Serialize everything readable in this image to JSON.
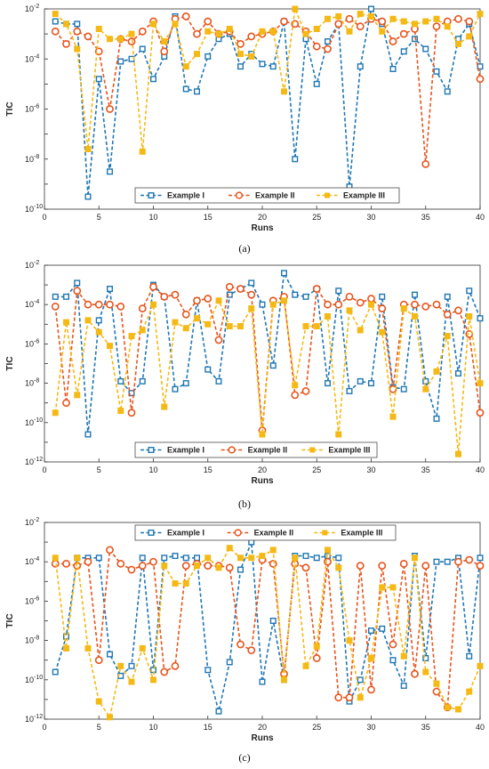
{
  "chart_data": [
    {
      "type": "line",
      "caption": "(a)",
      "xlabel": "Runs",
      "ylabel": "TIC",
      "xlim": [
        0,
        40
      ],
      "ylim_exp": [
        -10,
        -2
      ],
      "yscale": "log",
      "xticks": [
        "0",
        "5",
        "10",
        "15",
        "20",
        "25",
        "30",
        "35",
        "40"
      ],
      "yticks": [
        -10,
        -8,
        -6,
        -4,
        -2
      ],
      "legend": "bottom-center-inside",
      "grid": false,
      "series": [
        {
          "name": "Example I",
          "color": "#1f77b4",
          "marker": "square",
          "x": [
            1,
            2,
            3,
            4,
            5,
            6,
            7,
            8,
            9,
            10,
            11,
            12,
            13,
            14,
            15,
            16,
            17,
            18,
            19,
            20,
            21,
            22,
            23,
            24,
            25,
            26,
            27,
            28,
            29,
            30,
            31,
            32,
            33,
            34,
            35,
            36,
            37,
            38,
            39,
            40
          ],
          "y_exp": [
            -2.5,
            -2.6,
            -2.6,
            -9.5,
            -4.8,
            -8.5,
            -4.1,
            -4,
            -3.6,
            -4.8,
            -3.9,
            -2.3,
            -5.2,
            -5.3,
            -3.9,
            -3.2,
            -3,
            -4.3,
            -3.8,
            -4.2,
            -4.3,
            -2.5,
            -8,
            -3.2,
            -5,
            -3.3,
            -2.6,
            -9.1,
            -4.3,
            -2,
            -2.6,
            -4.4,
            -3.7,
            -3.2,
            -3.6,
            -4.5,
            -5.3,
            -3.2,
            -2.6,
            -4.3
          ]
        },
        {
          "name": "Example II",
          "color": "#e8541c",
          "marker": "circle",
          "x": [
            1,
            2,
            3,
            4,
            5,
            6,
            7,
            8,
            9,
            10,
            11,
            12,
            13,
            14,
            15,
            16,
            17,
            18,
            19,
            20,
            21,
            22,
            23,
            24,
            25,
            26,
            27,
            28,
            29,
            30,
            31,
            32,
            33,
            34,
            35,
            36,
            37,
            38,
            39,
            40
          ],
          "y_exp": [
            -2.9,
            -3.4,
            -2.9,
            -3.1,
            -3.7,
            -6,
            -3.2,
            -3.3,
            -2.9,
            -2.5,
            -3.7,
            -2.4,
            -2.3,
            -3,
            -2.5,
            -3,
            -2.9,
            -3.4,
            -3.1,
            -3,
            -2.9,
            -2.5,
            -2.6,
            -2.9,
            -3.5,
            -3.6,
            -2.6,
            -2.4,
            -2.7,
            -2.4,
            -2.5,
            -3.3,
            -3,
            -2.8,
            -8.2,
            -2.7,
            -2.5,
            -2.4,
            -2.5,
            -4.8
          ]
        },
        {
          "name": "Example III",
          "color": "#f5b915",
          "marker": "square-filled",
          "x": [
            1,
            2,
            3,
            4,
            5,
            6,
            7,
            8,
            9,
            10,
            11,
            12,
            13,
            14,
            15,
            16,
            17,
            18,
            19,
            20,
            21,
            22,
            23,
            24,
            25,
            26,
            27,
            28,
            29,
            30,
            31,
            32,
            33,
            34,
            35,
            36,
            37,
            38,
            39,
            40
          ],
          "y_exp": [
            -2.2,
            -2.6,
            -3.6,
            -7.6,
            -2.8,
            -3.2,
            -3.2,
            -3,
            -7.7,
            -2.6,
            -3.3,
            -2.6,
            -4.3,
            -3.8,
            -2.9,
            -3,
            -2.8,
            -3.8,
            -3.9,
            -2.9,
            -2.9,
            -5.3,
            -2,
            -3,
            -2.8,
            -2.4,
            -2.3,
            -2.9,
            -2.2,
            -2.3,
            -2.9,
            -2.4,
            -2.5,
            -2.6,
            -2.5,
            -2.4,
            -2.7,
            -3.4,
            -3.1,
            -2.2
          ]
        }
      ]
    },
    {
      "type": "line",
      "caption": "(b)",
      "xlabel": "Runs",
      "ylabel": "TIC",
      "xlim": [
        0,
        40
      ],
      "ylim_exp": [
        -12,
        -2
      ],
      "yscale": "log",
      "xticks": [
        "0",
        "5",
        "10",
        "15",
        "20",
        "25",
        "30",
        "35",
        "40"
      ],
      "yticks": [
        -12,
        -10,
        -8,
        -6,
        -4,
        -2
      ],
      "legend": "bottom-center-inside",
      "grid": false,
      "series": [
        {
          "name": "Example I",
          "color": "#1f77b4",
          "marker": "square",
          "x": [
            1,
            2,
            3,
            4,
            5,
            6,
            7,
            8,
            9,
            10,
            11,
            12,
            13,
            14,
            15,
            16,
            17,
            18,
            19,
            20,
            21,
            22,
            23,
            24,
            25,
            26,
            27,
            28,
            29,
            30,
            31,
            32,
            33,
            34,
            35,
            36,
            37,
            38,
            39,
            40
          ],
          "y_exp": [
            -3.6,
            -3.6,
            -2.9,
            -10.6,
            -4.8,
            -3.2,
            -7.9,
            -8.5,
            -7.9,
            -3,
            -3.6,
            -8.3,
            -8,
            -3.8,
            -7.3,
            -7.9,
            -3.5,
            -3.2,
            -2.9,
            -4,
            -7.1,
            -2.4,
            -3.5,
            -3.6,
            -3.2,
            -8,
            -3.3,
            -8.4,
            -7.9,
            -8,
            -3.6,
            -8.2,
            -8.3,
            -3.5,
            -7.9,
            -9.8,
            -3.6,
            -7.5,
            -3.3,
            -4.7
          ]
        },
        {
          "name": "Example II",
          "color": "#e8541c",
          "marker": "circle",
          "x": [
            1,
            2,
            3,
            4,
            5,
            6,
            7,
            8,
            9,
            10,
            11,
            12,
            13,
            14,
            15,
            16,
            17,
            18,
            19,
            20,
            21,
            22,
            23,
            24,
            25,
            26,
            27,
            28,
            29,
            30,
            31,
            32,
            33,
            34,
            35,
            36,
            37,
            38,
            39,
            40
          ],
          "y_exp": [
            -4.1,
            -9,
            -3.3,
            -4,
            -4,
            -4,
            -4.1,
            -9.5,
            -4.2,
            -3.1,
            -3.6,
            -3.5,
            -4.5,
            -3.8,
            -3.7,
            -5.8,
            -3.1,
            -3.2,
            -3.5,
            -10.4,
            -3.8,
            -3.6,
            -8.6,
            -8.4,
            -3.2,
            -4,
            -4,
            -3.6,
            -3.9,
            -3.7,
            -4.2,
            -8.3,
            -4,
            -4,
            -4.1,
            -4,
            -4.5,
            -4.3,
            -5.5,
            -9.5
          ]
        },
        {
          "name": "Example III",
          "color": "#f5b915",
          "marker": "square-filled",
          "x": [
            1,
            2,
            3,
            4,
            5,
            6,
            7,
            8,
            9,
            10,
            11,
            12,
            13,
            14,
            15,
            16,
            17,
            18,
            19,
            20,
            21,
            22,
            23,
            24,
            25,
            26,
            27,
            28,
            29,
            30,
            31,
            32,
            33,
            34,
            35,
            36,
            37,
            38,
            39,
            40
          ],
          "y_exp": [
            -9.5,
            -4.9,
            -8.6,
            -4.8,
            -5.4,
            -6.1,
            -9.4,
            -5.6,
            -5.3,
            -4,
            -9.2,
            -4.9,
            -5.2,
            -4.7,
            -5,
            -3.8,
            -5.1,
            -5.1,
            -4.2,
            -10.6,
            -4,
            -3.8,
            -8.1,
            -5.1,
            -5.1,
            -4.6,
            -10.6,
            -4.3,
            -5.3,
            -4,
            -5.4,
            -9.7,
            -4.2,
            -4.6,
            -8.3,
            -7.4,
            -5.6,
            -11.6,
            -4.6,
            -8
          ]
        }
      ]
    },
    {
      "type": "line",
      "caption": "(c)",
      "xlabel": "Runs",
      "ylabel": "TIC",
      "xlim": [
        0,
        40
      ],
      "ylim_exp": [
        -12,
        -2
      ],
      "yscale": "log",
      "xticks": [
        "0",
        "5",
        "10",
        "15",
        "20",
        "25",
        "30",
        "35",
        "40"
      ],
      "yticks": [
        -12,
        -10,
        -8,
        -6,
        -4,
        -2
      ],
      "legend": "top-center-inside",
      "grid": false,
      "series": [
        {
          "name": "Example I",
          "color": "#1f77b4",
          "marker": "square",
          "x": [
            1,
            2,
            3,
            4,
            5,
            6,
            7,
            8,
            9,
            10,
            11,
            12,
            13,
            14,
            15,
            16,
            17,
            18,
            19,
            20,
            21,
            22,
            23,
            24,
            25,
            26,
            27,
            28,
            29,
            30,
            31,
            32,
            33,
            34,
            35,
            36,
            37,
            38,
            39,
            40
          ],
          "y_exp": [
            -9.6,
            -7.8,
            -3.8,
            -3.8,
            -3.8,
            -8.7,
            -9.8,
            -9.3,
            -3.8,
            -9.5,
            -3.8,
            -3.7,
            -3.8,
            -3.8,
            -9.5,
            -11.6,
            -9.1,
            -4.4,
            -3,
            -10.1,
            -7,
            -10,
            -3.7,
            -3.7,
            -3.8,
            -3.7,
            -3.8,
            -11.1,
            -10,
            -7.5,
            -7.4,
            -9,
            -10.3,
            -3.7,
            -8.9,
            -4,
            -4,
            -3.8,
            -8.8,
            -3.8
          ]
        },
        {
          "name": "Example II",
          "color": "#e8541c",
          "marker": "circle",
          "x": [
            1,
            2,
            3,
            4,
            5,
            6,
            7,
            8,
            9,
            10,
            11,
            12,
            13,
            14,
            15,
            16,
            17,
            18,
            19,
            20,
            21,
            22,
            23,
            24,
            25,
            26,
            27,
            28,
            29,
            30,
            31,
            32,
            33,
            34,
            35,
            36,
            37,
            38,
            39,
            40
          ],
          "y_exp": [
            -4.1,
            -4.1,
            -4.2,
            -4,
            -9,
            -3.4,
            -4.1,
            -4.4,
            -4.2,
            -4,
            -9.6,
            -9.3,
            -4.2,
            -4.1,
            -4.2,
            -4.2,
            -4.3,
            -8.2,
            -8.5,
            -3.9,
            -4.1,
            -9.7,
            -4.1,
            -4.3,
            -8.9,
            -4,
            -10.9,
            -10.9,
            -4.2,
            -10.5,
            -4.2,
            -8.2,
            -4.1,
            -9.7,
            -4.2,
            -10.6,
            -11.4,
            -4,
            -3.9,
            -4.2
          ]
        },
        {
          "name": "Example III",
          "color": "#f5b915",
          "marker": "square-filled",
          "x": [
            1,
            2,
            3,
            4,
            5,
            6,
            7,
            8,
            9,
            10,
            11,
            12,
            13,
            14,
            15,
            16,
            17,
            18,
            19,
            20,
            21,
            22,
            23,
            24,
            25,
            26,
            27,
            28,
            29,
            30,
            31,
            32,
            33,
            34,
            35,
            36,
            37,
            38,
            39,
            40
          ],
          "y_exp": [
            -3.8,
            -8.4,
            -3.8,
            -8.4,
            -11.1,
            -11.9,
            -9.3,
            -10.1,
            -8.4,
            -10,
            -4.2,
            -5.1,
            -5.1,
            -4.2,
            -3.8,
            -4.3,
            -3.3,
            -3.8,
            -3.8,
            -3.7,
            -3.4,
            -10,
            -3.8,
            -9.3,
            -8.3,
            -3.4,
            -4.3,
            -8,
            -10.9,
            -8.9,
            -5.3,
            -5.3,
            -8.8,
            -3.8,
            -9.6,
            -10.2,
            -11.4,
            -11.5,
            -10.6,
            -9.3
          ]
        }
      ]
    }
  ]
}
